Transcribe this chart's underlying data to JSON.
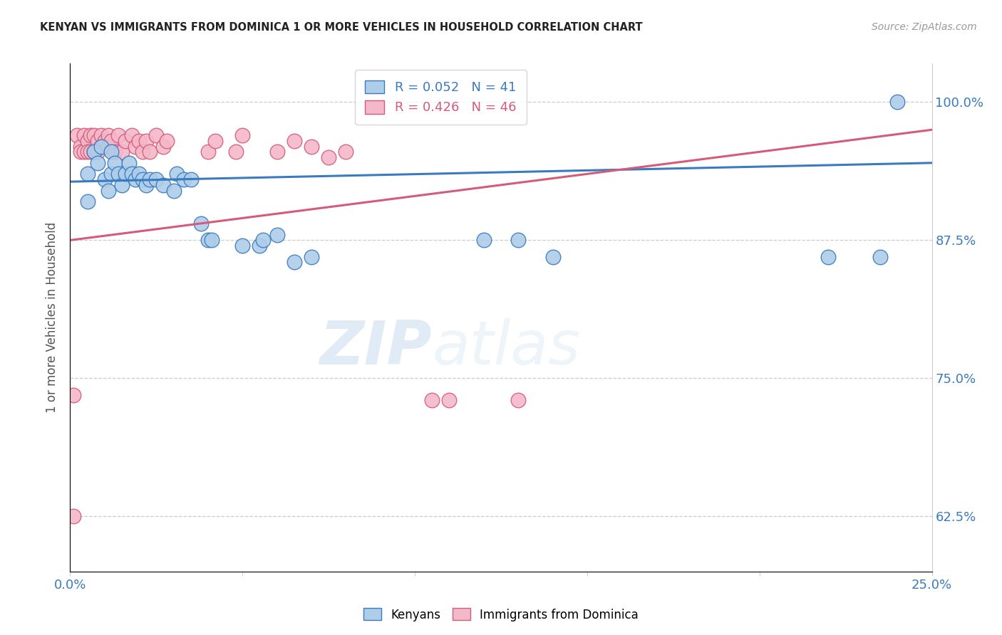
{
  "title": "KENYAN VS IMMIGRANTS FROM DOMINICA 1 OR MORE VEHICLES IN HOUSEHOLD CORRELATION CHART",
  "source": "Source: ZipAtlas.com",
  "ylabel": "1 or more Vehicles in Household",
  "ytick_labels": [
    "62.5%",
    "75.0%",
    "87.5%",
    "100.0%"
  ],
  "ytick_values": [
    0.625,
    0.75,
    0.875,
    1.0
  ],
  "xlim": [
    0.0,
    0.25
  ],
  "ylim": [
    0.575,
    1.035
  ],
  "kenyan_color": "#aecde8",
  "dominica_color": "#f4b8cb",
  "kenyan_line_color": "#3a7abf",
  "dominica_line_color": "#d45b7a",
  "watermark_zip": "ZIP",
  "watermark_atlas": "atlas",
  "kenyan_x": [
    0.005,
    0.005,
    0.007,
    0.008,
    0.009,
    0.01,
    0.011,
    0.012,
    0.012,
    0.013,
    0.014,
    0.015,
    0.016,
    0.017,
    0.018,
    0.019,
    0.02,
    0.021,
    0.022,
    0.023,
    0.025,
    0.027,
    0.03,
    0.031,
    0.033,
    0.035,
    0.038,
    0.04,
    0.041,
    0.05,
    0.055,
    0.056,
    0.06,
    0.065,
    0.07,
    0.12,
    0.13,
    0.14,
    0.22,
    0.235,
    0.24
  ],
  "kenyan_y": [
    0.935,
    0.91,
    0.955,
    0.945,
    0.96,
    0.93,
    0.92,
    0.935,
    0.955,
    0.945,
    0.935,
    0.925,
    0.935,
    0.945,
    0.935,
    0.93,
    0.935,
    0.93,
    0.925,
    0.93,
    0.93,
    0.925,
    0.92,
    0.935,
    0.93,
    0.93,
    0.89,
    0.875,
    0.875,
    0.87,
    0.87,
    0.875,
    0.88,
    0.855,
    0.86,
    0.875,
    0.875,
    0.86,
    0.86,
    0.86,
    1.0
  ],
  "dominica_x": [
    0.001,
    0.001,
    0.002,
    0.003,
    0.003,
    0.004,
    0.004,
    0.005,
    0.005,
    0.006,
    0.006,
    0.007,
    0.007,
    0.008,
    0.008,
    0.009,
    0.009,
    0.01,
    0.011,
    0.011,
    0.012,
    0.013,
    0.014,
    0.015,
    0.016,
    0.018,
    0.019,
    0.02,
    0.021,
    0.022,
    0.023,
    0.025,
    0.027,
    0.028,
    0.04,
    0.042,
    0.048,
    0.05,
    0.06,
    0.065,
    0.07,
    0.075,
    0.08,
    0.105,
    0.11,
    0.13
  ],
  "dominica_y": [
    0.625,
    0.735,
    0.97,
    0.96,
    0.955,
    0.97,
    0.955,
    0.965,
    0.955,
    0.97,
    0.955,
    0.97,
    0.955,
    0.965,
    0.955,
    0.97,
    0.96,
    0.965,
    0.97,
    0.96,
    0.965,
    0.955,
    0.97,
    0.955,
    0.965,
    0.97,
    0.96,
    0.965,
    0.955,
    0.965,
    0.955,
    0.97,
    0.96,
    0.965,
    0.955,
    0.965,
    0.955,
    0.97,
    0.955,
    0.965,
    0.96,
    0.95,
    0.955,
    0.73,
    0.73,
    0.73
  ],
  "kenyan_line_x": [
    0.0,
    0.25
  ],
  "kenyan_line_y": [
    0.928,
    0.945
  ],
  "dominica_line_x": [
    0.0,
    0.25
  ],
  "dominica_line_y": [
    0.875,
    0.975
  ]
}
